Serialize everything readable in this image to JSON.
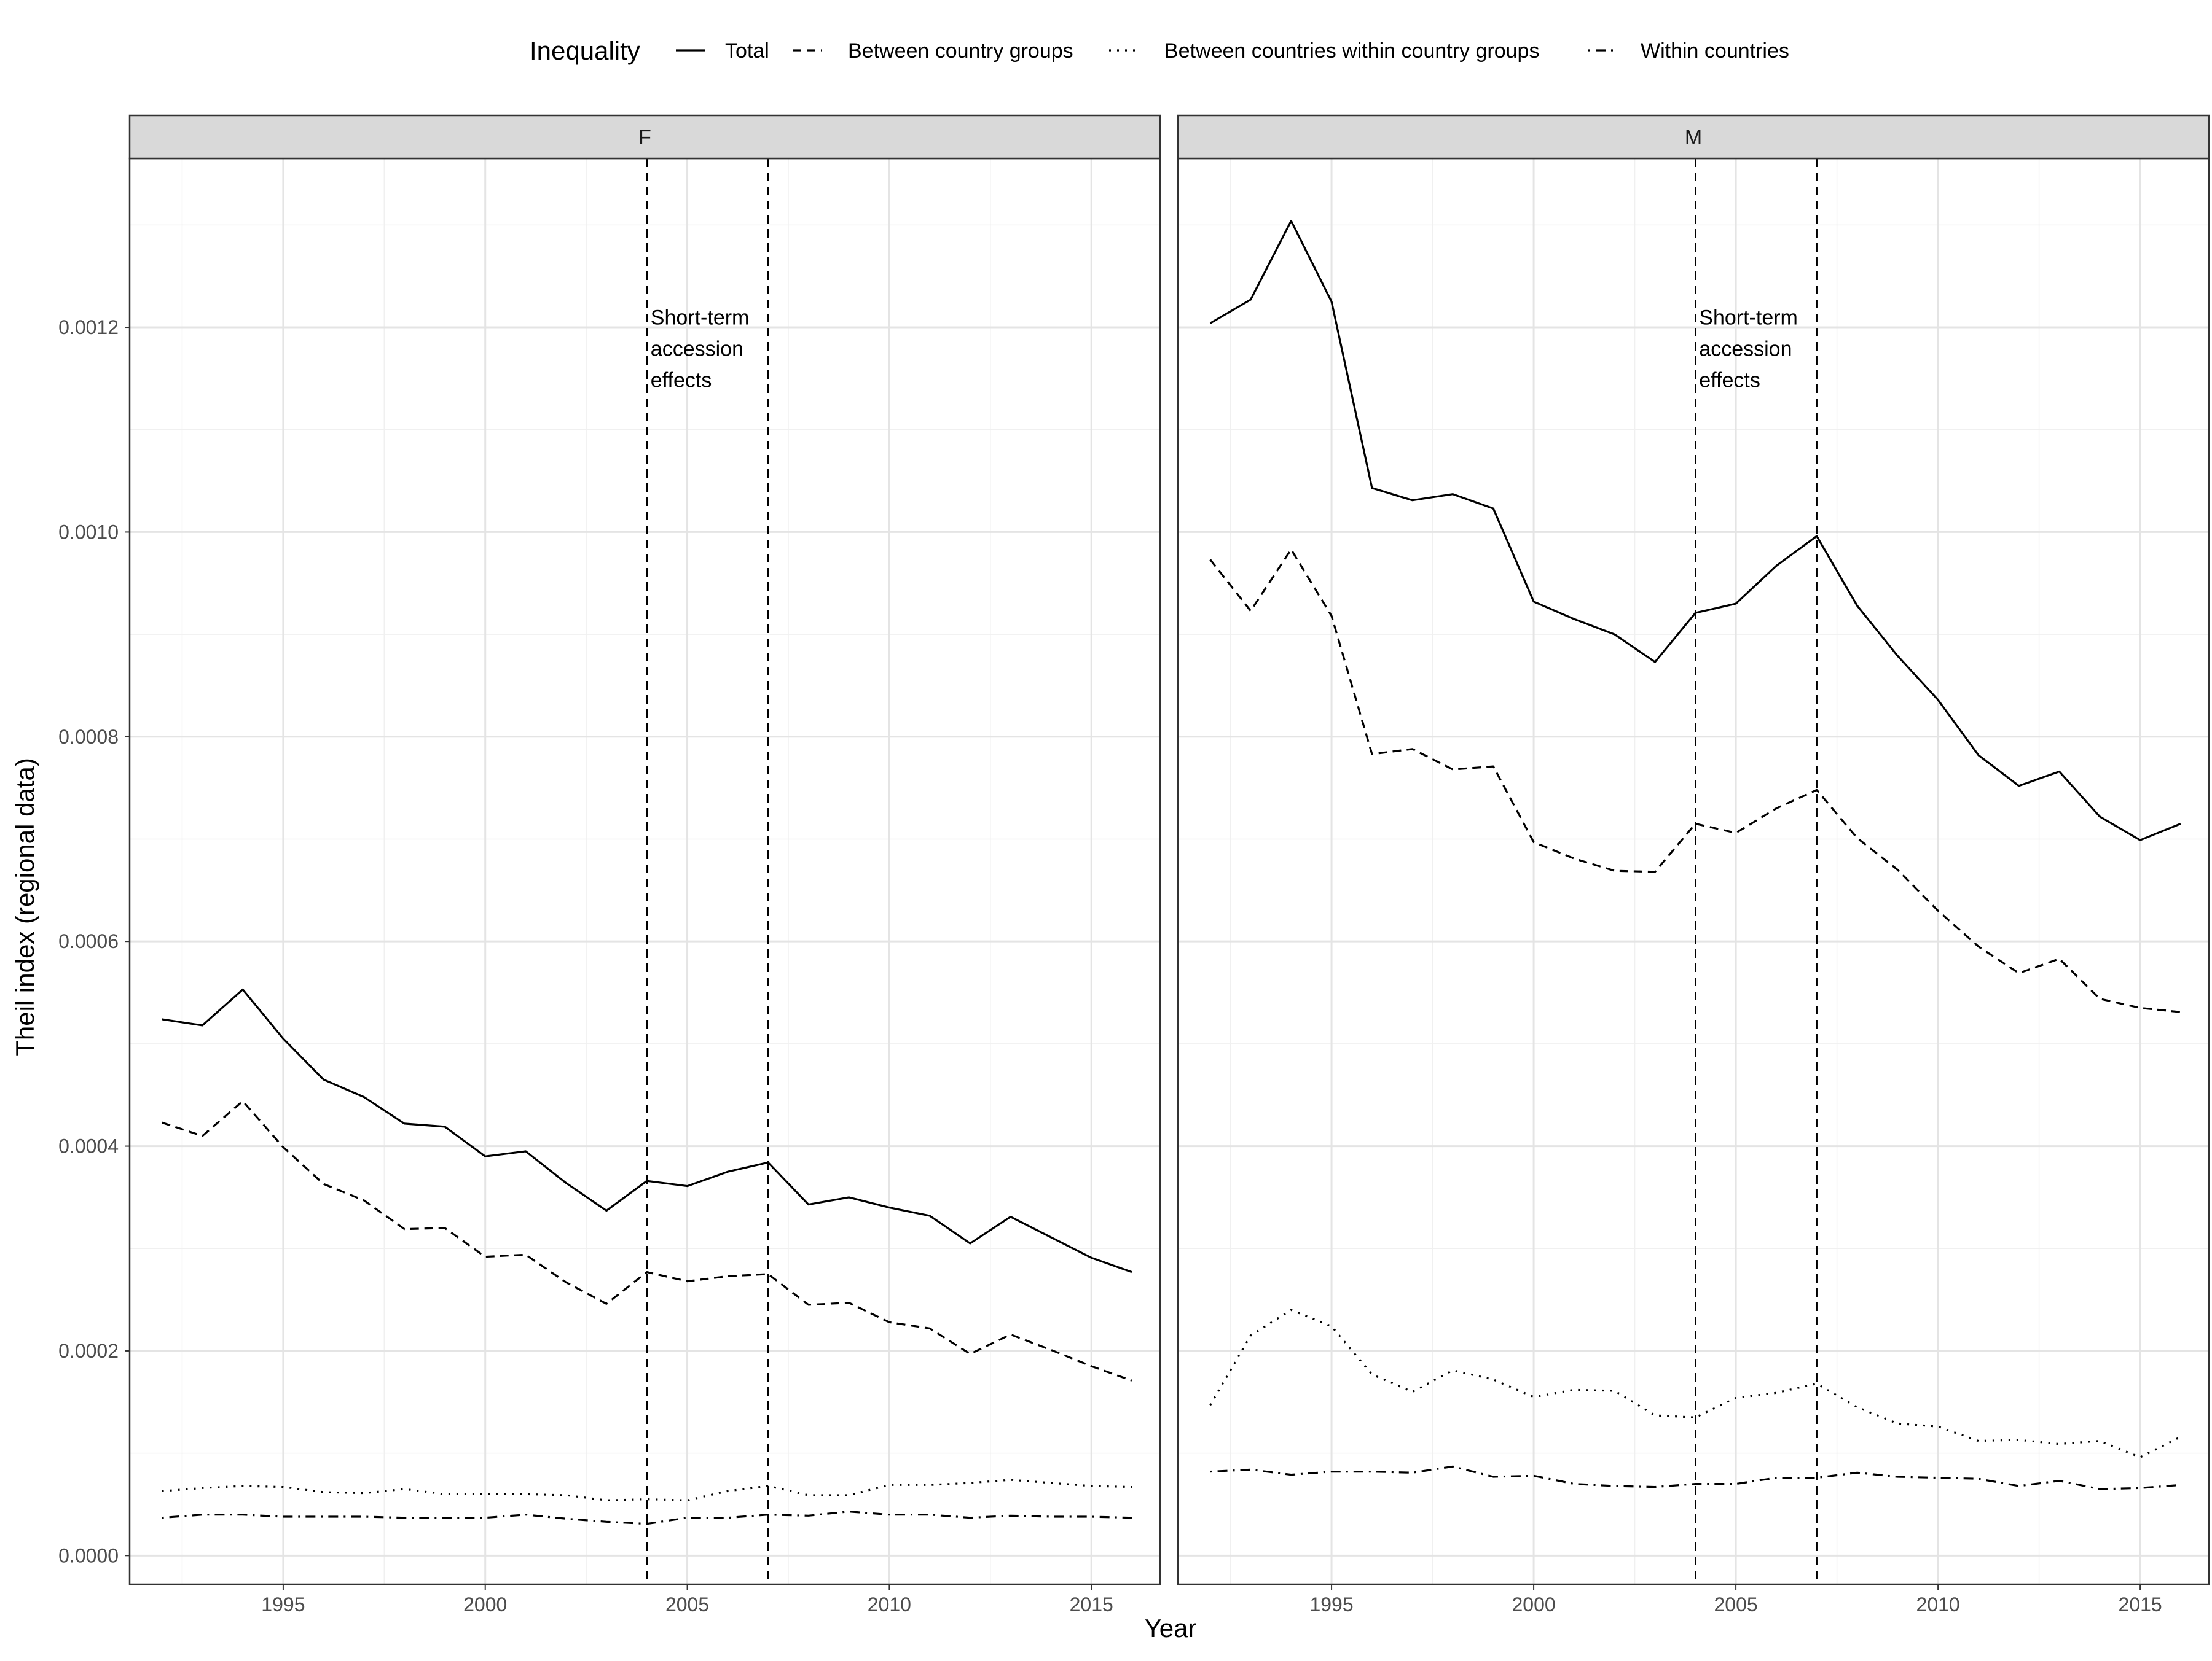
{
  "chart_data": {
    "type": "line",
    "xlabel": "Year",
    "ylabel": "Theil index (regional data)",
    "xlim": [
      1991.2,
      2016.7
    ],
    "ylim": [
      -2.8e-05,
      0.001365
    ],
    "x_ticks": [
      1995,
      2000,
      2005,
      2010,
      2015
    ],
    "x_tick_labels": [
      "1995",
      "2000",
      "2005",
      "2010",
      "2015"
    ],
    "y_ticks": [
      0,
      0.0002,
      0.0004,
      0.0006,
      0.0008,
      0.001,
      0.0012
    ],
    "y_tick_labels": [
      "0.0000",
      "0.0002",
      "0.0004",
      "0.0006",
      "0.0008",
      "0.0010",
      "0.0012"
    ],
    "grid": true,
    "legend": {
      "title": "Inequality",
      "position": "top",
      "entries": [
        {
          "label": "Total",
          "linetype": "solid"
        },
        {
          "label": "Between country groups",
          "linetype": "dashed"
        },
        {
          "label": "Between countries within country groups",
          "linetype": "dotted"
        },
        {
          "label": "Within countries",
          "linetype": "dotdash"
        }
      ]
    },
    "x": [
      1992,
      1993,
      1994,
      1995,
      1996,
      1997,
      1998,
      1999,
      2000,
      2001,
      2002,
      2003,
      2004,
      2005,
      2006,
      2007,
      2008,
      2009,
      2010,
      2011,
      2012,
      2013,
      2014,
      2015,
      2016
    ],
    "vlines": [
      2004,
      2007
    ],
    "annotation": {
      "x": 2004,
      "y": 0.00121,
      "lines": [
        "Short-term",
        "accession",
        "effects"
      ]
    },
    "panels": [
      {
        "name": "F",
        "series": [
          {
            "name": "Total",
            "linetype": "solid",
            "values": [
              0.000524,
              0.000518,
              0.000553,
              0.000505,
              0.000465,
              0.000448,
              0.000422,
              0.000419,
              0.00039,
              0.000395,
              0.000364,
              0.000337,
              0.000366,
              0.000361,
              0.000375,
              0.000384,
              0.000343,
              0.00035,
              0.00034,
              0.000332,
              0.000305,
              0.000331,
              0.000311,
              0.000291,
              0.000277
            ]
          },
          {
            "name": "Between country groups",
            "linetype": "dashed",
            "values": [
              0.000423,
              0.00041,
              0.000444,
              0.000399,
              0.000363,
              0.000347,
              0.000319,
              0.00032,
              0.000292,
              0.000294,
              0.000267,
              0.000246,
              0.000277,
              0.000268,
              0.000273,
              0.000275,
              0.000245,
              0.000247,
              0.000228,
              0.000222,
              0.000197,
              0.000216,
              0.000201,
              0.000185,
              0.000171
            ]
          },
          {
            "name": "Between countries within country groups",
            "linetype": "dotted",
            "values": [
              6.3e-05,
              6.6e-05,
              6.8e-05,
              6.7e-05,
              6.2e-05,
              6.1e-05,
              6.5e-05,
              6e-05,
              6e-05,
              6e-05,
              5.9e-05,
              5.4e-05,
              5.5e-05,
              5.4e-05,
              6.3e-05,
              6.8e-05,
              5.9e-05,
              5.9e-05,
              6.9e-05,
              6.9e-05,
              7.1e-05,
              7.4e-05,
              7.1e-05,
              6.8e-05,
              6.7e-05
            ]
          },
          {
            "name": "Within countries",
            "linetype": "dotdash",
            "values": [
              3.7e-05,
              4e-05,
              4e-05,
              3.8e-05,
              3.8e-05,
              3.8e-05,
              3.7e-05,
              3.7e-05,
              3.7e-05,
              4e-05,
              3.6e-05,
              3.3e-05,
              3.1e-05,
              3.7e-05,
              3.7e-05,
              4e-05,
              3.9e-05,
              4.3e-05,
              4e-05,
              4e-05,
              3.7e-05,
              3.9e-05,
              3.8e-05,
              3.8e-05,
              3.7e-05
            ]
          }
        ]
      },
      {
        "name": "M",
        "series": [
          {
            "name": "Total",
            "linetype": "solid",
            "values": [
              0.001204,
              0.001227,
              0.001304,
              0.001225,
              0.001043,
              0.001031,
              0.001037,
              0.001023,
              0.000932,
              0.000915,
              0.0009,
              0.000873,
              0.000921,
              0.00093,
              0.000967,
              0.000996,
              0.000928,
              0.000879,
              0.000836,
              0.000782,
              0.000752,
              0.000766,
              0.000722,
              0.000699,
              0.000715
            ]
          },
          {
            "name": "Between country groups",
            "linetype": "dashed",
            "values": [
              0.000973,
              0.000923,
              0.000983,
              0.000918,
              0.000783,
              0.000788,
              0.000768,
              0.000771,
              0.000697,
              0.000681,
              0.000669,
              0.000668,
              0.000715,
              0.000706,
              0.00073,
              0.000748,
              0.000701,
              0.00067,
              0.00063,
              0.000595,
              0.000569,
              0.000583,
              0.000544,
              0.000535,
              0.000531
            ]
          },
          {
            "name": "Between countries within country groups",
            "linetype": "dotted",
            "values": [
              0.000147,
              0.000215,
              0.00024,
              0.000224,
              0.000177,
              0.00016,
              0.000181,
              0.000172,
              0.000155,
              0.000162,
              0.000161,
              0.000137,
              0.000135,
              0.000154,
              0.000159,
              0.000168,
              0.000145,
              0.000129,
              0.000126,
              0.000112,
              0.000113,
              0.000109,
              0.000112,
              9.6e-05,
              0.000116
            ]
          },
          {
            "name": "Within countries",
            "linetype": "dotdash",
            "values": [
              8.2e-05,
              8.4e-05,
              7.9e-05,
              8.2e-05,
              8.2e-05,
              8.1e-05,
              8.7e-05,
              7.7e-05,
              7.8e-05,
              7e-05,
              6.8e-05,
              6.7e-05,
              7e-05,
              7e-05,
              7.6e-05,
              7.6e-05,
              8.1e-05,
              7.7e-05,
              7.6e-05,
              7.5e-05,
              6.8e-05,
              7.3e-05,
              6.5e-05,
              6.6e-05,
              6.9e-05
            ]
          }
        ]
      }
    ]
  }
}
